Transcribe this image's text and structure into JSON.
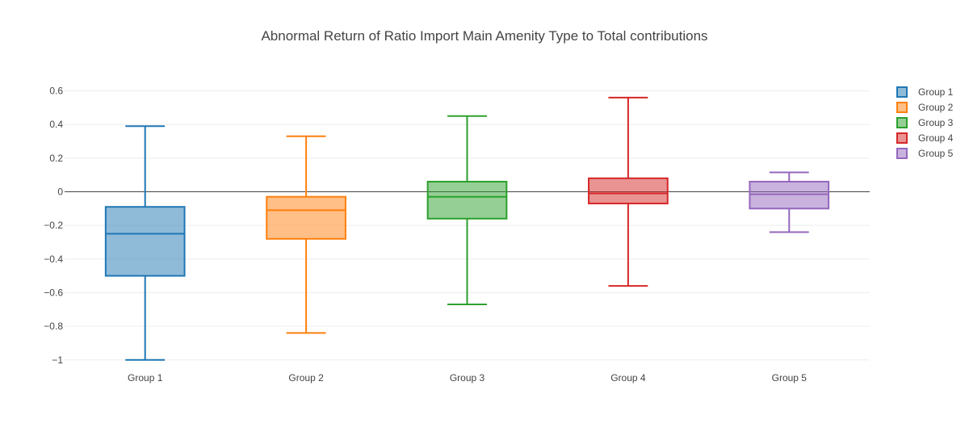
{
  "chart_data": {
    "type": "box",
    "title": "Abnormal Return of Ratio Import Main Amenity Type to Total contributions",
    "xlabel": "",
    "ylabel": "",
    "categories": [
      "Group 1",
      "Group 2",
      "Group 3",
      "Group 4",
      "Group 5"
    ],
    "ylim": [
      -1.03,
      0.66
    ],
    "yticks": [
      0.6,
      0.4,
      0.2,
      0,
      -0.2,
      -0.4,
      -0.6,
      -0.8,
      -1
    ],
    "ytick_labels": [
      "0.6",
      "0.4",
      "0.2",
      "0",
      "−0.2",
      "−0.4",
      "−0.6",
      "−0.8",
      "−1"
    ],
    "grid": true,
    "legend_position": "top-right",
    "series": [
      {
        "name": "Group 1",
        "color": "#1f77b4",
        "min": -1.0,
        "q1": -0.5,
        "median": -0.25,
        "q3": -0.09,
        "max": 0.39
      },
      {
        "name": "Group 2",
        "color": "#ff7f0e",
        "min": -0.84,
        "q1": -0.28,
        "median": -0.11,
        "q3": -0.03,
        "max": 0.33
      },
      {
        "name": "Group 3",
        "color": "#2ca02c",
        "min": -0.67,
        "q1": -0.16,
        "median": -0.03,
        "q3": 0.06,
        "max": 0.45
      },
      {
        "name": "Group 4",
        "color": "#d62728",
        "min": -0.56,
        "q1": -0.07,
        "median": -0.01,
        "q3": 0.08,
        "max": 0.56
      },
      {
        "name": "Group 5",
        "color": "#9467bd",
        "min": -0.24,
        "q1": -0.1,
        "median": -0.015,
        "q3": 0.06,
        "max": 0.115
      }
    ]
  }
}
